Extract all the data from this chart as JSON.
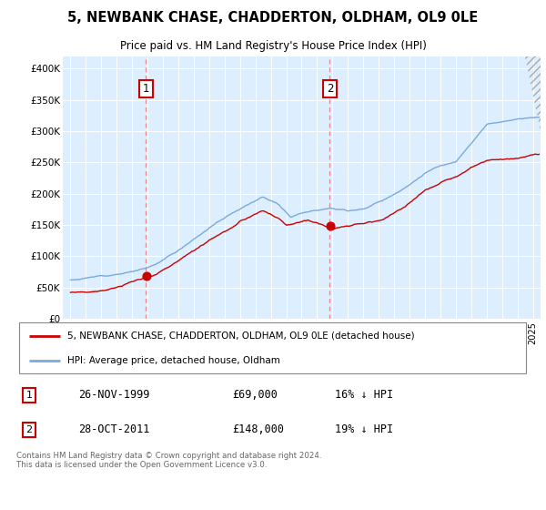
{
  "title": "5, NEWBANK CHASE, CHADDERTON, OLDHAM, OL9 0LE",
  "subtitle": "Price paid vs. HM Land Registry's House Price Index (HPI)",
  "legend_line1": "5, NEWBANK CHASE, CHADDERTON, OLDHAM, OL9 0LE (detached house)",
  "legend_line2": "HPI: Average price, detached house, Oldham",
  "annotation1": {
    "label": "1",
    "date": "26-NOV-1999",
    "price": "£69,000",
    "pct": "16% ↓ HPI",
    "x_year": 1999.9
  },
  "annotation2": {
    "label": "2",
    "date": "28-OCT-2011",
    "price": "£148,000",
    "pct": "19% ↓ HPI",
    "x_year": 2011.83
  },
  "copyright": "Contains HM Land Registry data © Crown copyright and database right 2024.\nThis data is licensed under the Open Government Licence v3.0.",
  "house_color": "#cc0000",
  "hpi_color": "#7aaadd",
  "background_color": "#ddeeff",
  "annotation_color": "#cc0000",
  "ylim": [
    0,
    420000
  ],
  "yticks": [
    0,
    50000,
    100000,
    150000,
    200000,
    250000,
    300000,
    350000,
    400000
  ],
  "ytick_labels": [
    "£0",
    "£50K",
    "£100K",
    "£150K",
    "£200K",
    "£250K",
    "£300K",
    "£350K",
    "£400K"
  ],
  "xlim_start": 1994.5,
  "xlim_end": 2025.5,
  "sale1_value": 69000,
  "sale1_year": 1999.9,
  "sale2_value": 148000,
  "sale2_year": 2011.83
}
